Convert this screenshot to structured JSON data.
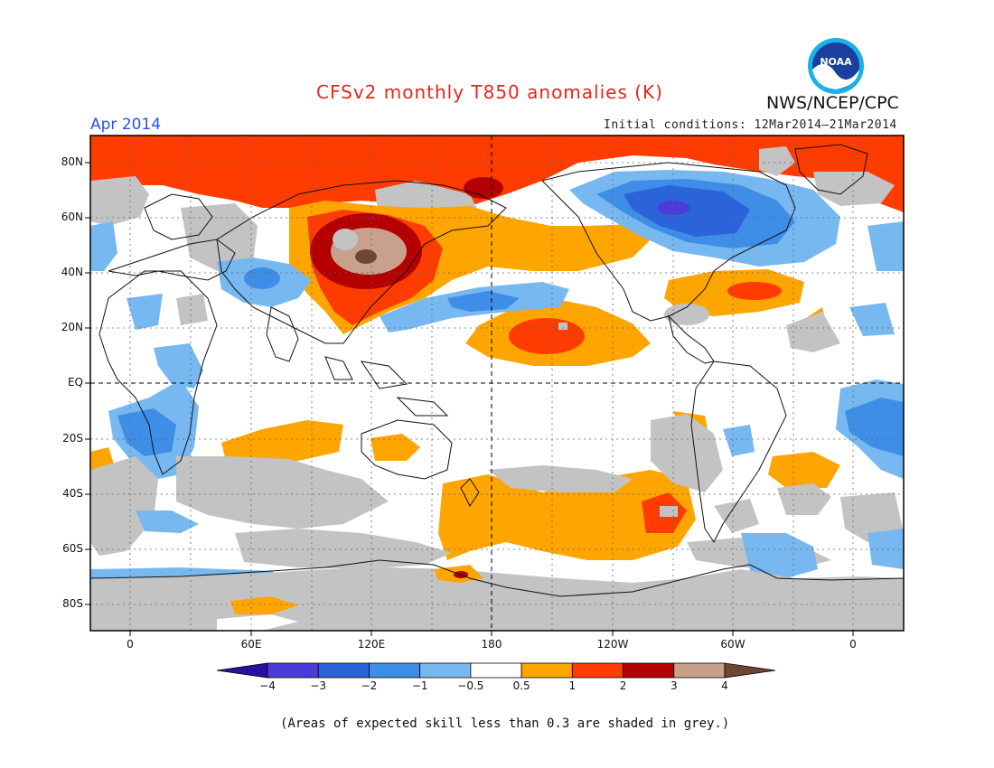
{
  "title": "CFSv2 monthly T850 anomalies (K)",
  "month": "Apr 2014",
  "agency": "NWS/NCEP/CPC",
  "initial_conditions": "Initial conditions: 12Mar2014–21Mar2014",
  "logo_text": "NOAA",
  "footnote": "(Areas of expected skill less than 0.3 are shaded in grey.)",
  "lat_labels": [
    "80N",
    "60N",
    "40N",
    "20N",
    "EQ",
    "20S",
    "40S",
    "60S",
    "80S"
  ],
  "lon_labels": [
    "0",
    "60E",
    "120E",
    "180",
    "120W",
    "60W",
    "0"
  ],
  "colorbar": {
    "labels": [
      "−4",
      "−3",
      "−2",
      "−1",
      "−0.5",
      "0.5",
      "1",
      "2",
      "3",
      "4"
    ],
    "colors": [
      "#2c0ea0",
      "#4a3cd8",
      "#2a63da",
      "#3e8ee8",
      "#78b8f0",
      "#ffffff",
      "#ffa500",
      "#ff3c00",
      "#b40000",
      "#c8a08c",
      "#6e4632"
    ]
  },
  "palette": {
    "grey": "#c3c3c3",
    "orange": "#ffa500",
    "red": "#ff3c00",
    "darkred": "#b40000",
    "tan": "#c8a08c",
    "brown": "#6e4632",
    "lightblue": "#78b8f0",
    "blue": "#3e8ee8",
    "medblue": "#2a63da",
    "indigo": "#4a3cd8"
  }
}
